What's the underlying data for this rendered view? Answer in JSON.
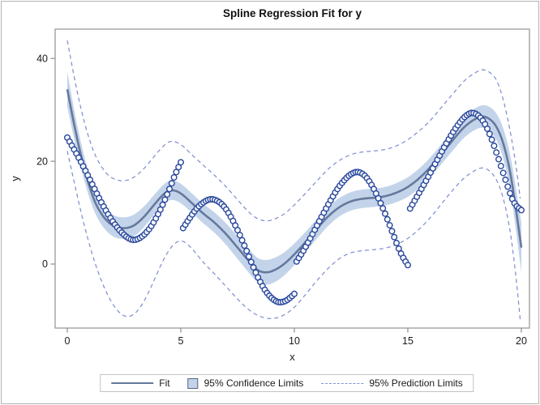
{
  "chart_data": {
    "type": "scatter",
    "title": "Spline Regression Fit for y",
    "xlabel": "x",
    "ylabel": "y",
    "xlim": [
      -0.536,
      20.357
    ],
    "ylim": [
      -12.45,
      45.7
    ],
    "xticks": [
      0,
      5,
      10,
      15,
      20
    ],
    "yticks": [
      0,
      20,
      40
    ],
    "grid": false,
    "legend_position": "bottom-center",
    "legend": {
      "fit": "Fit",
      "confidence": "95% Confidence Limits",
      "prediction": "95% Prediction Limits"
    },
    "colors": {
      "marker": "#28479c",
      "fit": "#66799c",
      "band": "#c3d4ea",
      "prediction": "#8090d2",
      "frame": "#9a9a9a",
      "tick": "#8c8c8c",
      "text": "#1a1a1a"
    },
    "scatter_sample_step": 0.1,
    "scatter_segments": [
      [
        [
          0,
          24.6
        ],
        [
          0.5,
          20.7
        ],
        [
          1,
          16.4
        ],
        [
          1.5,
          12.0
        ],
        [
          2,
          8.3
        ],
        [
          2.5,
          5.7
        ],
        [
          2.9,
          4.7
        ],
        [
          3.3,
          5.4
        ],
        [
          3.7,
          7.4
        ],
        [
          4.1,
          10.6
        ],
        [
          4.5,
          14.6
        ],
        [
          4.75,
          17.4
        ],
        [
          5,
          19.8
        ]
      ],
      [
        [
          5.1,
          7.0
        ],
        [
          5.4,
          9.0
        ],
        [
          5.7,
          10.8
        ],
        [
          6.0,
          12.0
        ],
        [
          6.3,
          12.6
        ],
        [
          6.6,
          12.3
        ],
        [
          6.9,
          11.2
        ],
        [
          7.2,
          9.2
        ],
        [
          7.5,
          6.6
        ],
        [
          7.8,
          3.6
        ],
        [
          8.1,
          0.4
        ],
        [
          8.4,
          -2.6
        ],
        [
          8.7,
          -5.0
        ],
        [
          9.0,
          -6.6
        ],
        [
          9.3,
          -7.4
        ],
        [
          9.6,
          -7.2
        ],
        [
          9.8,
          -6.6
        ],
        [
          10,
          -5.8
        ]
      ],
      [
        [
          10.1,
          0.5
        ],
        [
          10.4,
          2.6
        ],
        [
          10.7,
          5.0
        ],
        [
          11.0,
          7.5
        ],
        [
          11.3,
          10.0
        ],
        [
          11.6,
          12.4
        ],
        [
          11.9,
          14.6
        ],
        [
          12.2,
          16.3
        ],
        [
          12.5,
          17.5
        ],
        [
          12.8,
          17.9
        ],
        [
          13.1,
          17.2
        ],
        [
          13.4,
          15.4
        ],
        [
          13.7,
          12.8
        ],
        [
          14.0,
          9.8
        ],
        [
          14.3,
          6.4
        ],
        [
          14.6,
          3.0
        ],
        [
          14.8,
          1.2
        ],
        [
          15,
          -0.2
        ]
      ],
      [
        [
          15.1,
          10.8
        ],
        [
          15.4,
          13.1
        ],
        [
          15.7,
          15.4
        ],
        [
          16.0,
          17.8
        ],
        [
          16.3,
          20.3
        ],
        [
          16.6,
          22.7
        ],
        [
          16.9,
          25.0
        ],
        [
          17.2,
          27.0
        ],
        [
          17.5,
          28.6
        ],
        [
          17.8,
          29.4
        ],
        [
          18.1,
          28.9
        ],
        [
          18.4,
          27.2
        ],
        [
          18.7,
          24.2
        ],
        [
          19.0,
          20.4
        ],
        [
          19.3,
          16.4
        ],
        [
          19.55,
          13.2
        ],
        [
          19.75,
          11.5
        ],
        [
          20,
          10.5
        ]
      ]
    ],
    "fit": [
      [
        0,
        34
      ],
      [
        0.3,
        27.2
      ],
      [
        0.6,
        21.2
      ],
      [
        0.9,
        16.2
      ],
      [
        1.2,
        12.3
      ],
      [
        1.5,
        9.8
      ],
      [
        1.8,
        8.2
      ],
      [
        2.1,
        7.3
      ],
      [
        2.4,
        7.0
      ],
      [
        2.7,
        7.1
      ],
      [
        3.0,
        7.7
      ],
      [
        3.4,
        9.3
      ],
      [
        3.8,
        11.4
      ],
      [
        4.2,
        13.4
      ],
      [
        4.5,
        14.3
      ],
      [
        4.8,
        14.2
      ],
      [
        5.1,
        13.4
      ],
      [
        5.5,
        11.8
      ],
      [
        6.0,
        9.8
      ],
      [
        6.5,
        8.0
      ],
      [
        7.0,
        5.8
      ],
      [
        7.5,
        3.2
      ],
      [
        8.0,
        0.6
      ],
      [
        8.4,
        -1.2
      ],
      [
        8.8,
        -1.6
      ],
      [
        9.2,
        -1.0
      ],
      [
        9.6,
        0.2
      ],
      [
        10,
        1.9
      ],
      [
        10.5,
        4.3
      ],
      [
        11,
        6.9
      ],
      [
        11.5,
        9.3
      ],
      [
        12,
        11.1
      ],
      [
        12.5,
        12.2
      ],
      [
        13,
        12.7
      ],
      [
        13.5,
        12.9
      ],
      [
        14,
        13.2
      ],
      [
        14.5,
        13.9
      ],
      [
        15,
        15.0
      ],
      [
        15.5,
        16.7
      ],
      [
        16,
        18.9
      ],
      [
        16.5,
        21.5
      ],
      [
        17,
        24.2
      ],
      [
        17.5,
        26.7
      ],
      [
        18,
        28.3
      ],
      [
        18.3,
        28.7
      ],
      [
        18.6,
        28.2
      ],
      [
        18.9,
        26.7
      ],
      [
        19.2,
        23.5
      ],
      [
        19.5,
        18.0
      ],
      [
        19.75,
        11.0
      ],
      [
        20,
        3.2
      ]
    ],
    "ci_halfwidth": [
      [
        0,
        3.4
      ],
      [
        0.5,
        2.6
      ],
      [
        1,
        2.2
      ],
      [
        1.5,
        2.1
      ],
      [
        2,
        2.1
      ],
      [
        3,
        2.1
      ],
      [
        4,
        1.9
      ],
      [
        5,
        1.9
      ],
      [
        6,
        1.9
      ],
      [
        7,
        2.1
      ],
      [
        8,
        2.3
      ],
      [
        9,
        2.4
      ],
      [
        10,
        2.1
      ],
      [
        11,
        1.9
      ],
      [
        12,
        1.8
      ],
      [
        13,
        1.8
      ],
      [
        14,
        1.8
      ],
      [
        15,
        1.9
      ],
      [
        16,
        1.9
      ],
      [
        17,
        2.0
      ],
      [
        18,
        2.1
      ],
      [
        18.5,
        2.3
      ],
      [
        19,
        2.7
      ],
      [
        19.5,
        3.4
      ],
      [
        20,
        4.8
      ]
    ],
    "upper_prediction": [
      [
        0,
        43.5
      ],
      [
        0.3,
        36.5
      ],
      [
        0.6,
        30.3
      ],
      [
        0.9,
        25.3
      ],
      [
        1.2,
        21.5
      ],
      [
        1.5,
        19.0
      ],
      [
        1.8,
        17.3
      ],
      [
        2.1,
        16.5
      ],
      [
        2.4,
        16.2
      ],
      [
        2.7,
        16.4
      ],
      [
        3.0,
        17.1
      ],
      [
        3.4,
        18.7
      ],
      [
        3.8,
        20.8
      ],
      [
        4.2,
        22.8
      ],
      [
        4.5,
        23.8
      ],
      [
        4.8,
        23.7
      ],
      [
        5.1,
        22.9
      ],
      [
        5.5,
        21.2
      ],
      [
        6.0,
        19.2
      ],
      [
        6.5,
        17.2
      ],
      [
        7.0,
        15.0
      ],
      [
        7.5,
        12.5
      ],
      [
        8.0,
        10.1
      ],
      [
        8.4,
        8.8
      ],
      [
        8.8,
        8.4
      ],
      [
        9.2,
        8.9
      ],
      [
        9.6,
        9.9
      ],
      [
        10,
        11.5
      ],
      [
        10.5,
        13.8
      ],
      [
        11,
        16.2
      ],
      [
        11.5,
        18.5
      ],
      [
        12,
        20.2
      ],
      [
        12.5,
        21.3
      ],
      [
        13,
        21.8
      ],
      [
        13.5,
        22.0
      ],
      [
        14,
        22.3
      ],
      [
        14.5,
        23.0
      ],
      [
        15,
        24.2
      ],
      [
        15.5,
        25.9
      ],
      [
        16,
        28.0
      ],
      [
        16.5,
        30.6
      ],
      [
        17,
        33.2
      ],
      [
        17.5,
        35.7
      ],
      [
        18,
        37.3
      ],
      [
        18.3,
        37.8
      ],
      [
        18.6,
        37.3
      ],
      [
        18.9,
        35.8
      ],
      [
        19.2,
        32.0
      ],
      [
        19.5,
        26.0
      ],
      [
        19.75,
        19.5
      ],
      [
        19.95,
        12.8
      ]
    ],
    "lower_prediction": [
      [
        0,
        22.0
      ],
      [
        0.3,
        16.0
      ],
      [
        0.6,
        10.2
      ],
      [
        0.9,
        5.0
      ],
      [
        1.2,
        0.5
      ],
      [
        1.5,
        -3.2
      ],
      [
        1.8,
        -6.2
      ],
      [
        2.1,
        -8.4
      ],
      [
        2.4,
        -9.8
      ],
      [
        2.7,
        -10.2
      ],
      [
        3.0,
        -9.5
      ],
      [
        3.3,
        -7.8
      ],
      [
        3.6,
        -5.3
      ],
      [
        3.9,
        -2.4
      ],
      [
        4.2,
        0.5
      ],
      [
        4.5,
        2.8
      ],
      [
        4.8,
        4.2
      ],
      [
        5.1,
        4.4
      ],
      [
        5.4,
        3.4
      ],
      [
        5.7,
        1.9
      ],
      [
        6.0,
        0.3
      ],
      [
        6.5,
        -2.0
      ],
      [
        7.0,
        -4.4
      ],
      [
        7.5,
        -6.8
      ],
      [
        8.0,
        -8.9
      ],
      [
        8.5,
        -10.2
      ],
      [
        9.0,
        -10.6
      ],
      [
        9.5,
        -10.0
      ],
      [
        10,
        -8.4
      ],
      [
        10.5,
        -5.9
      ],
      [
        11,
        -3.2
      ],
      [
        11.5,
        -0.8
      ],
      [
        12,
        1.1
      ],
      [
        12.5,
        2.2
      ],
      [
        13,
        2.6
      ],
      [
        13.5,
        2.8
      ],
      [
        14,
        3.1
      ],
      [
        14.5,
        3.8
      ],
      [
        15,
        5.0
      ],
      [
        15.5,
        6.8
      ],
      [
        16,
        9.1
      ],
      [
        16.5,
        11.8
      ],
      [
        17,
        14.5
      ],
      [
        17.5,
        16.8
      ],
      [
        18,
        18.3
      ],
      [
        18.3,
        18.7
      ],
      [
        18.6,
        18.1
      ],
      [
        18.9,
        16.4
      ],
      [
        19.2,
        12.8
      ],
      [
        19.5,
        6.5
      ],
      [
        19.75,
        -2.0
      ],
      [
        19.95,
        -10.8
      ]
    ]
  }
}
